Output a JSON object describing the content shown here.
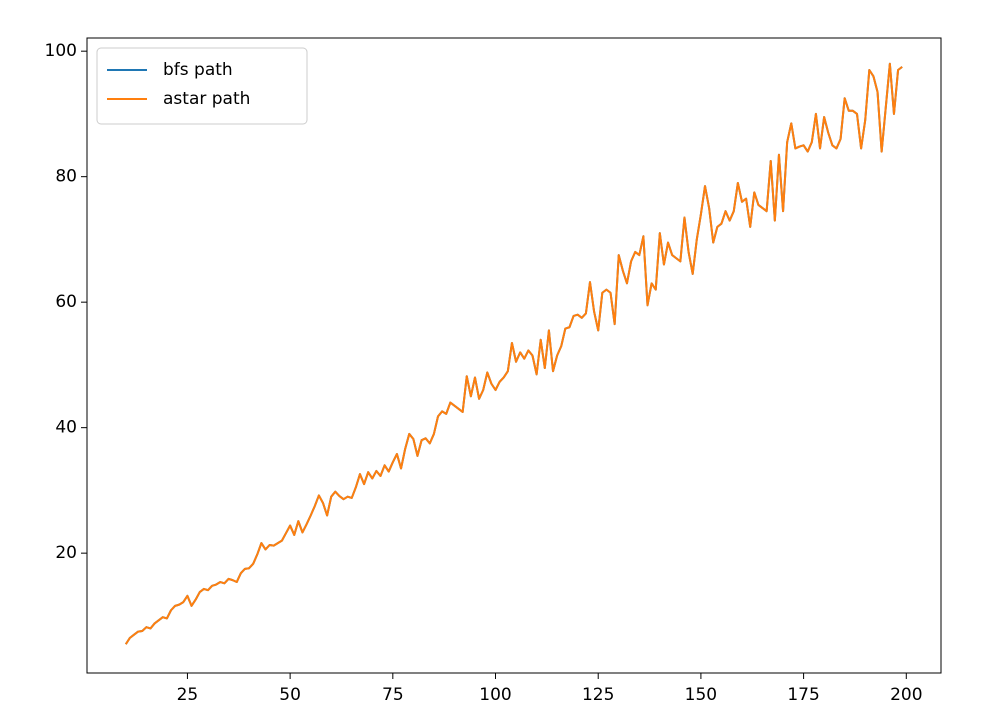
{
  "chart_data": {
    "type": "line",
    "x": [
      10,
      11,
      12,
      13,
      14,
      15,
      16,
      17,
      18,
      19,
      20,
      21,
      22,
      23,
      24,
      25,
      26,
      27,
      28,
      29,
      30,
      31,
      32,
      33,
      34,
      35,
      36,
      37,
      38,
      39,
      40,
      41,
      42,
      43,
      44,
      45,
      46,
      47,
      48,
      49,
      50,
      51,
      52,
      53,
      54,
      55,
      56,
      57,
      58,
      59,
      60,
      61,
      62,
      63,
      64,
      65,
      66,
      67,
      68,
      69,
      70,
      71,
      72,
      73,
      74,
      75,
      76,
      77,
      78,
      79,
      80,
      81,
      82,
      83,
      84,
      85,
      86,
      87,
      88,
      89,
      90,
      91,
      92,
      93,
      94,
      95,
      96,
      97,
      98,
      99,
      100,
      101,
      102,
      103,
      104,
      105,
      106,
      107,
      108,
      109,
      110,
      111,
      112,
      113,
      114,
      115,
      116,
      117,
      118,
      119,
      120,
      121,
      122,
      123,
      124,
      125,
      126,
      127,
      128,
      129,
      130,
      131,
      132,
      133,
      134,
      135,
      136,
      137,
      138,
      139,
      140,
      141,
      142,
      143,
      144,
      145,
      146,
      147,
      148,
      149,
      150,
      151,
      152,
      153,
      154,
      155,
      156,
      157,
      158,
      159,
      160,
      161,
      162,
      163,
      164,
      165,
      166,
      167,
      168,
      169,
      170,
      171,
      172,
      173,
      174,
      175,
      176,
      177,
      178,
      179,
      180,
      181,
      182,
      183,
      184,
      185,
      186,
      187,
      188,
      189,
      190,
      191,
      192,
      193,
      194,
      195,
      196,
      197,
      198,
      199
    ],
    "series": [
      {
        "name": "bfs path",
        "color": "#1f77b4",
        "values": [
          5.5,
          6.5,
          7.0,
          7.5,
          7.6,
          8.2,
          8.0,
          8.8,
          9.3,
          9.8,
          9.6,
          10.9,
          11.6,
          11.8,
          12.2,
          13.2,
          11.6,
          12.6,
          13.8,
          14.3,
          14.1,
          14.8,
          15.0,
          15.4,
          15.2,
          15.9,
          15.7,
          15.4,
          16.8,
          17.5,
          17.6,
          18.3,
          19.8,
          21.6,
          20.6,
          21.3,
          21.2,
          21.6,
          22.0,
          23.2,
          24.4,
          22.9,
          25.1,
          23.3,
          24.6,
          26.0,
          27.5,
          29.2,
          28.0,
          26.0,
          29.0,
          29.8,
          29.1,
          28.6,
          29.0,
          28.8,
          30.5,
          32.6,
          31.0,
          32.9,
          31.9,
          33.1,
          32.3,
          34.0,
          33.0,
          34.5,
          35.8,
          33.5,
          36.6,
          39.0,
          38.2,
          35.5,
          38.0,
          38.3,
          37.5,
          39.0,
          41.8,
          42.6,
          42.2,
          44.0,
          43.5,
          43.0,
          42.5,
          48.2,
          45.0,
          48.0,
          44.6,
          46.0,
          48.8,
          47.0,
          46.0,
          47.3,
          48.0,
          49.0,
          53.5,
          50.5,
          52.0,
          51.0,
          52.3,
          51.5,
          48.5,
          54.0,
          49.5,
          55.5,
          49.0,
          51.5,
          53.0,
          55.8,
          56.0,
          57.8,
          58.0,
          57.5,
          58.2,
          63.2,
          58.5,
          55.5,
          61.5,
          62.0,
          61.5,
          56.5,
          67.5,
          65.0,
          63.0,
          66.5,
          68.0,
          67.5,
          70.5,
          59.5,
          63.0,
          62.0,
          71.0,
          66.0,
          69.5,
          67.5,
          67.0,
          66.5,
          73.5,
          68.0,
          64.5,
          70.0,
          74.0,
          78.5,
          75.0,
          69.5,
          72.0,
          72.5,
          74.5,
          73.0,
          74.5,
          79.0,
          76.0,
          76.5,
          72.0,
          77.5,
          75.5,
          75.0,
          74.5,
          82.5,
          73.0,
          83.5,
          74.5,
          85.5,
          88.5,
          84.5,
          84.8,
          85.0,
          84.0,
          85.5,
          90.0,
          84.5,
          89.5,
          87.0,
          85.0,
          84.5,
          86.0,
          92.5,
          90.5,
          90.5,
          90.0,
          84.5,
          89.0,
          97.0,
          96.0,
          93.5,
          84.0,
          91.0,
          98.0,
          90.0,
          97.0,
          97.5
        ]
      },
      {
        "name": "astar path",
        "color": "#ff7f0e",
        "values": [
          5.5,
          6.5,
          7.0,
          7.5,
          7.6,
          8.2,
          8.0,
          8.8,
          9.3,
          9.8,
          9.6,
          10.9,
          11.6,
          11.8,
          12.2,
          13.2,
          11.6,
          12.6,
          13.8,
          14.3,
          14.1,
          14.8,
          15.0,
          15.4,
          15.2,
          15.9,
          15.7,
          15.4,
          16.8,
          17.5,
          17.6,
          18.3,
          19.8,
          21.6,
          20.6,
          21.3,
          21.2,
          21.6,
          22.0,
          23.2,
          24.4,
          22.9,
          25.1,
          23.3,
          24.6,
          26.0,
          27.5,
          29.2,
          28.0,
          26.0,
          29.0,
          29.8,
          29.1,
          28.6,
          29.0,
          28.8,
          30.5,
          32.6,
          31.0,
          32.9,
          31.9,
          33.1,
          32.3,
          34.0,
          33.0,
          34.5,
          35.8,
          33.5,
          36.6,
          39.0,
          38.2,
          35.5,
          38.0,
          38.3,
          37.5,
          39.0,
          41.8,
          42.6,
          42.2,
          44.0,
          43.5,
          43.0,
          42.5,
          48.2,
          45.0,
          48.0,
          44.6,
          46.0,
          48.8,
          47.0,
          46.0,
          47.3,
          48.0,
          49.0,
          53.5,
          50.5,
          52.0,
          51.0,
          52.3,
          51.5,
          48.5,
          54.0,
          49.5,
          55.5,
          49.0,
          51.5,
          53.0,
          55.8,
          56.0,
          57.8,
          58.0,
          57.5,
          58.2,
          63.2,
          58.5,
          55.5,
          61.5,
          62.0,
          61.5,
          56.5,
          67.5,
          65.0,
          63.0,
          66.5,
          68.0,
          67.5,
          70.5,
          59.5,
          63.0,
          62.0,
          71.0,
          66.0,
          69.5,
          67.5,
          67.0,
          66.5,
          73.5,
          68.0,
          64.5,
          70.0,
          74.0,
          78.5,
          75.0,
          69.5,
          72.0,
          72.5,
          74.5,
          73.0,
          74.5,
          79.0,
          76.0,
          76.5,
          72.0,
          77.5,
          75.5,
          75.0,
          74.5,
          82.5,
          73.0,
          83.5,
          74.5,
          85.5,
          88.5,
          84.5,
          84.8,
          85.0,
          84.0,
          85.5,
          90.0,
          84.5,
          89.5,
          87.0,
          85.0,
          84.5,
          86.0,
          92.5,
          90.5,
          90.5,
          90.0,
          84.5,
          89.0,
          97.0,
          96.0,
          93.5,
          84.0,
          91.0,
          98.0,
          90.0,
          97.0,
          97.5
        ]
      }
    ],
    "xlim": [
      0.55,
      208.45
    ],
    "ylim": [
      0.9,
      102.1
    ],
    "xticks": [
      25,
      50,
      75,
      100,
      125,
      150,
      175,
      200
    ],
    "yticks": [
      20,
      40,
      60,
      80,
      100
    ],
    "legend": "upper left"
  }
}
